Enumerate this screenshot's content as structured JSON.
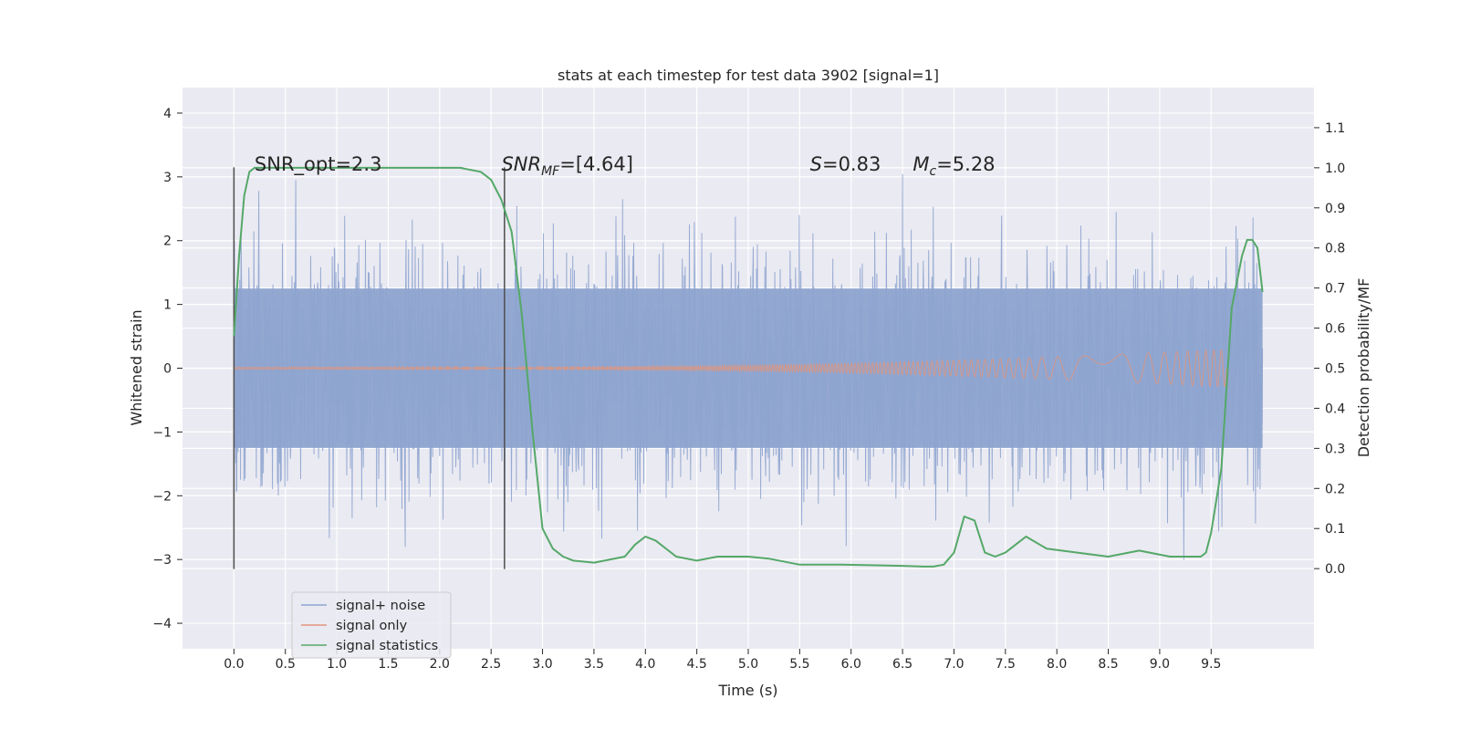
{
  "chart_data": {
    "type": "line",
    "title": "stats at each timestep for test data 3902 [signal=1]",
    "xlabel": "Time (s)",
    "ylabel": "Whitened strain",
    "ylabel_right": "Detection probability/MF",
    "xlim": [
      -0.5,
      10.5
    ],
    "ylim": [
      -4.4,
      4.4
    ],
    "ylim_right": [
      -0.2,
      1.2
    ],
    "x_ticks": [
      0.0,
      0.5,
      1.0,
      1.5,
      2.0,
      2.5,
      3.0,
      3.5,
      4.0,
      4.5,
      5.0,
      5.5,
      6.0,
      6.5,
      7.0,
      7.5,
      8.0,
      8.5,
      9.0,
      9.5
    ],
    "x_tick_labels": [
      "0.0",
      "0.5",
      "1.0",
      "1.5",
      "2.0",
      "2.5",
      "3.0",
      "3.5",
      "4.0",
      "4.5",
      "5.0",
      "5.5",
      "6.0",
      "6.5",
      "7.0",
      "7.5",
      "8.0",
      "8.5",
      "9.0",
      "9.5"
    ],
    "y_ticks": [
      -4,
      -3,
      -2,
      -1,
      0,
      1,
      2,
      3,
      4
    ],
    "y_tick_labels": [
      "−4",
      "−3",
      "−2",
      "−1",
      "0",
      "1",
      "2",
      "3",
      "4"
    ],
    "y_right_ticks": [
      0.0,
      0.1,
      0.2,
      0.3,
      0.4,
      0.5,
      0.6,
      0.7,
      0.8,
      0.9,
      1.0,
      1.1
    ],
    "y_right_tick_labels": [
      "0.0",
      "0.1",
      "0.2",
      "0.3",
      "0.4",
      "0.5",
      "0.6",
      "0.7",
      "0.8",
      "0.9",
      "1.0",
      "1.1"
    ],
    "grid": true,
    "legend_position": "lower-left",
    "annotations": [
      {
        "text": "SNR_opt=2.3",
        "x": 0.2,
        "y": 3.1
      },
      {
        "text": "SNR",
        "sub": "MF",
        "rest": "=[4.64]",
        "x": 2.6,
        "y": 3.1
      },
      {
        "text": "S",
        "rest": "=0.83",
        "x": 5.6,
        "y": 3.1
      },
      {
        "text": "M",
        "sub": "c",
        "rest": "=5.28",
        "x": 6.6,
        "y": 3.1
      }
    ],
    "vlines": [
      {
        "x": 0.0,
        "y0": -3.15,
        "y1": 3.15
      },
      {
        "x": 2.63,
        "y0": -3.15,
        "y1": 3.15
      }
    ],
    "series": [
      {
        "name": "signal+ noise",
        "color": "#8ea4cf",
        "x_range": [
          0.0,
          10.0
        ],
        "core_amplitude": 1.25,
        "spike_envelope": [
          -3.9,
          3.9
        ]
      },
      {
        "name": "signal only",
        "color": "#e1957c",
        "x_range": [
          0.0,
          9.65
        ],
        "amplitude_start": 0.02,
        "amplitude_end": 0.3
      },
      {
        "name": "signal statistics",
        "color": "#55a868",
        "axis": "right",
        "x": [
          0.0,
          0.05,
          0.1,
          0.15,
          0.2,
          0.3,
          0.5,
          1.0,
          1.5,
          2.0,
          2.2,
          2.4,
          2.5,
          2.6,
          2.7,
          2.8,
          2.9,
          3.0,
          3.1,
          3.2,
          3.3,
          3.5,
          3.8,
          3.9,
          4.0,
          4.1,
          4.3,
          4.5,
          4.7,
          5.0,
          5.2,
          5.5,
          5.9,
          6.3,
          6.5,
          6.7,
          6.8,
          6.9,
          7.0,
          7.1,
          7.2,
          7.3,
          7.4,
          7.5,
          7.6,
          7.7,
          7.9,
          8.2,
          8.5,
          8.8,
          9.1,
          9.2,
          9.3,
          9.4,
          9.45,
          9.5,
          9.6,
          9.7,
          9.8,
          9.85,
          9.9,
          9.95,
          10.0
        ],
        "y": [
          0.58,
          0.78,
          0.93,
          0.99,
          1.0,
          1.0,
          1.0,
          1.0,
          1.0,
          1.0,
          1.0,
          0.99,
          0.97,
          0.92,
          0.84,
          0.63,
          0.35,
          0.1,
          0.05,
          0.03,
          0.02,
          0.015,
          0.03,
          0.06,
          0.08,
          0.07,
          0.03,
          0.02,
          0.03,
          0.03,
          0.025,
          0.01,
          0.01,
          0.008,
          0.007,
          0.005,
          0.005,
          0.01,
          0.04,
          0.13,
          0.12,
          0.04,
          0.03,
          0.04,
          0.06,
          0.08,
          0.05,
          0.04,
          0.03,
          0.045,
          0.03,
          0.03,
          0.03,
          0.03,
          0.04,
          0.09,
          0.25,
          0.65,
          0.78,
          0.82,
          0.82,
          0.8,
          0.69
        ]
      }
    ]
  }
}
